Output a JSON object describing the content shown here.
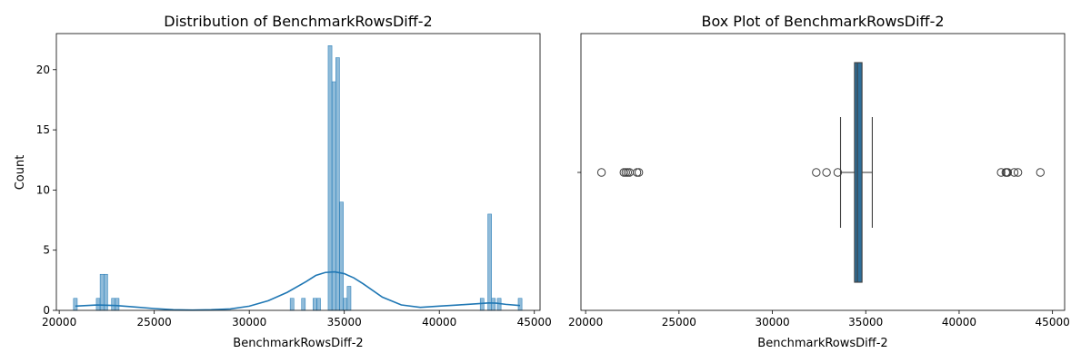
{
  "chart_data": [
    {
      "type": "bar",
      "subtype": "histogram-with-kde",
      "title": "Distribution of BenchmarkRowsDiff-2",
      "xlabel": "BenchmarkRowsDiff-2",
      "ylabel": "Count",
      "xlim": [
        19850,
        45300
      ],
      "ylim": [
        0,
        23
      ],
      "xticks": [
        20000,
        25000,
        30000,
        35000,
        40000,
        45000
      ],
      "yticks": [
        0,
        5,
        10,
        15,
        20
      ],
      "bin_width": 198,
      "color": "#1f77b4",
      "bins": [
        {
          "x": 20850,
          "count": 1
        },
        {
          "x": 22050,
          "count": 1
        },
        {
          "x": 22250,
          "count": 3
        },
        {
          "x": 22450,
          "count": 3
        },
        {
          "x": 22850,
          "count": 1
        },
        {
          "x": 23050,
          "count": 1
        },
        {
          "x": 32250,
          "count": 1
        },
        {
          "x": 32850,
          "count": 1
        },
        {
          "x": 33450,
          "count": 1
        },
        {
          "x": 33650,
          "count": 1
        },
        {
          "x": 34250,
          "count": 22
        },
        {
          "x": 34450,
          "count": 19
        },
        {
          "x": 34650,
          "count": 21
        },
        {
          "x": 34850,
          "count": 9
        },
        {
          "x": 35050,
          "count": 1
        },
        {
          "x": 35250,
          "count": 2
        },
        {
          "x": 42250,
          "count": 1
        },
        {
          "x": 42650,
          "count": 8
        },
        {
          "x": 42850,
          "count": 1
        },
        {
          "x": 43150,
          "count": 1
        },
        {
          "x": 44250,
          "count": 1
        }
      ],
      "kde": {
        "x": [
          20850,
          22000,
          23000,
          24000,
          25000,
          26000,
          27000,
          28000,
          29000,
          30000,
          31000,
          32000,
          33000,
          33500,
          34000,
          34500,
          35000,
          35500,
          36000,
          37000,
          38000,
          39000,
          40000,
          41000,
          42000,
          42600,
          43000,
          43500,
          44250
        ],
        "y": [
          0.35,
          0.45,
          0.4,
          0.28,
          0.15,
          0.05,
          0.02,
          0.05,
          0.12,
          0.35,
          0.8,
          1.5,
          2.4,
          2.9,
          3.15,
          3.2,
          3.05,
          2.7,
          2.2,
          1.1,
          0.45,
          0.25,
          0.35,
          0.45,
          0.55,
          0.62,
          0.6,
          0.5,
          0.4
        ]
      }
    },
    {
      "type": "box",
      "title": "Box Plot of BenchmarkRowsDiff-2",
      "xlabel": "BenchmarkRowsDiff-2",
      "xlim": [
        19750,
        45650
      ],
      "xticks": [
        20000,
        25000,
        30000,
        35000,
        40000,
        45000
      ],
      "color": "#2e6e99",
      "whisker_low": 33650,
      "q1": 34400,
      "median": 34550,
      "q3": 34800,
      "whisker_high": 35350,
      "outliers": [
        20850,
        22050,
        22150,
        22250,
        22350,
        22750,
        22850,
        32350,
        32900,
        33500,
        42250,
        42500,
        42550,
        42600,
        42950,
        43150,
        44350
      ]
    }
  ]
}
